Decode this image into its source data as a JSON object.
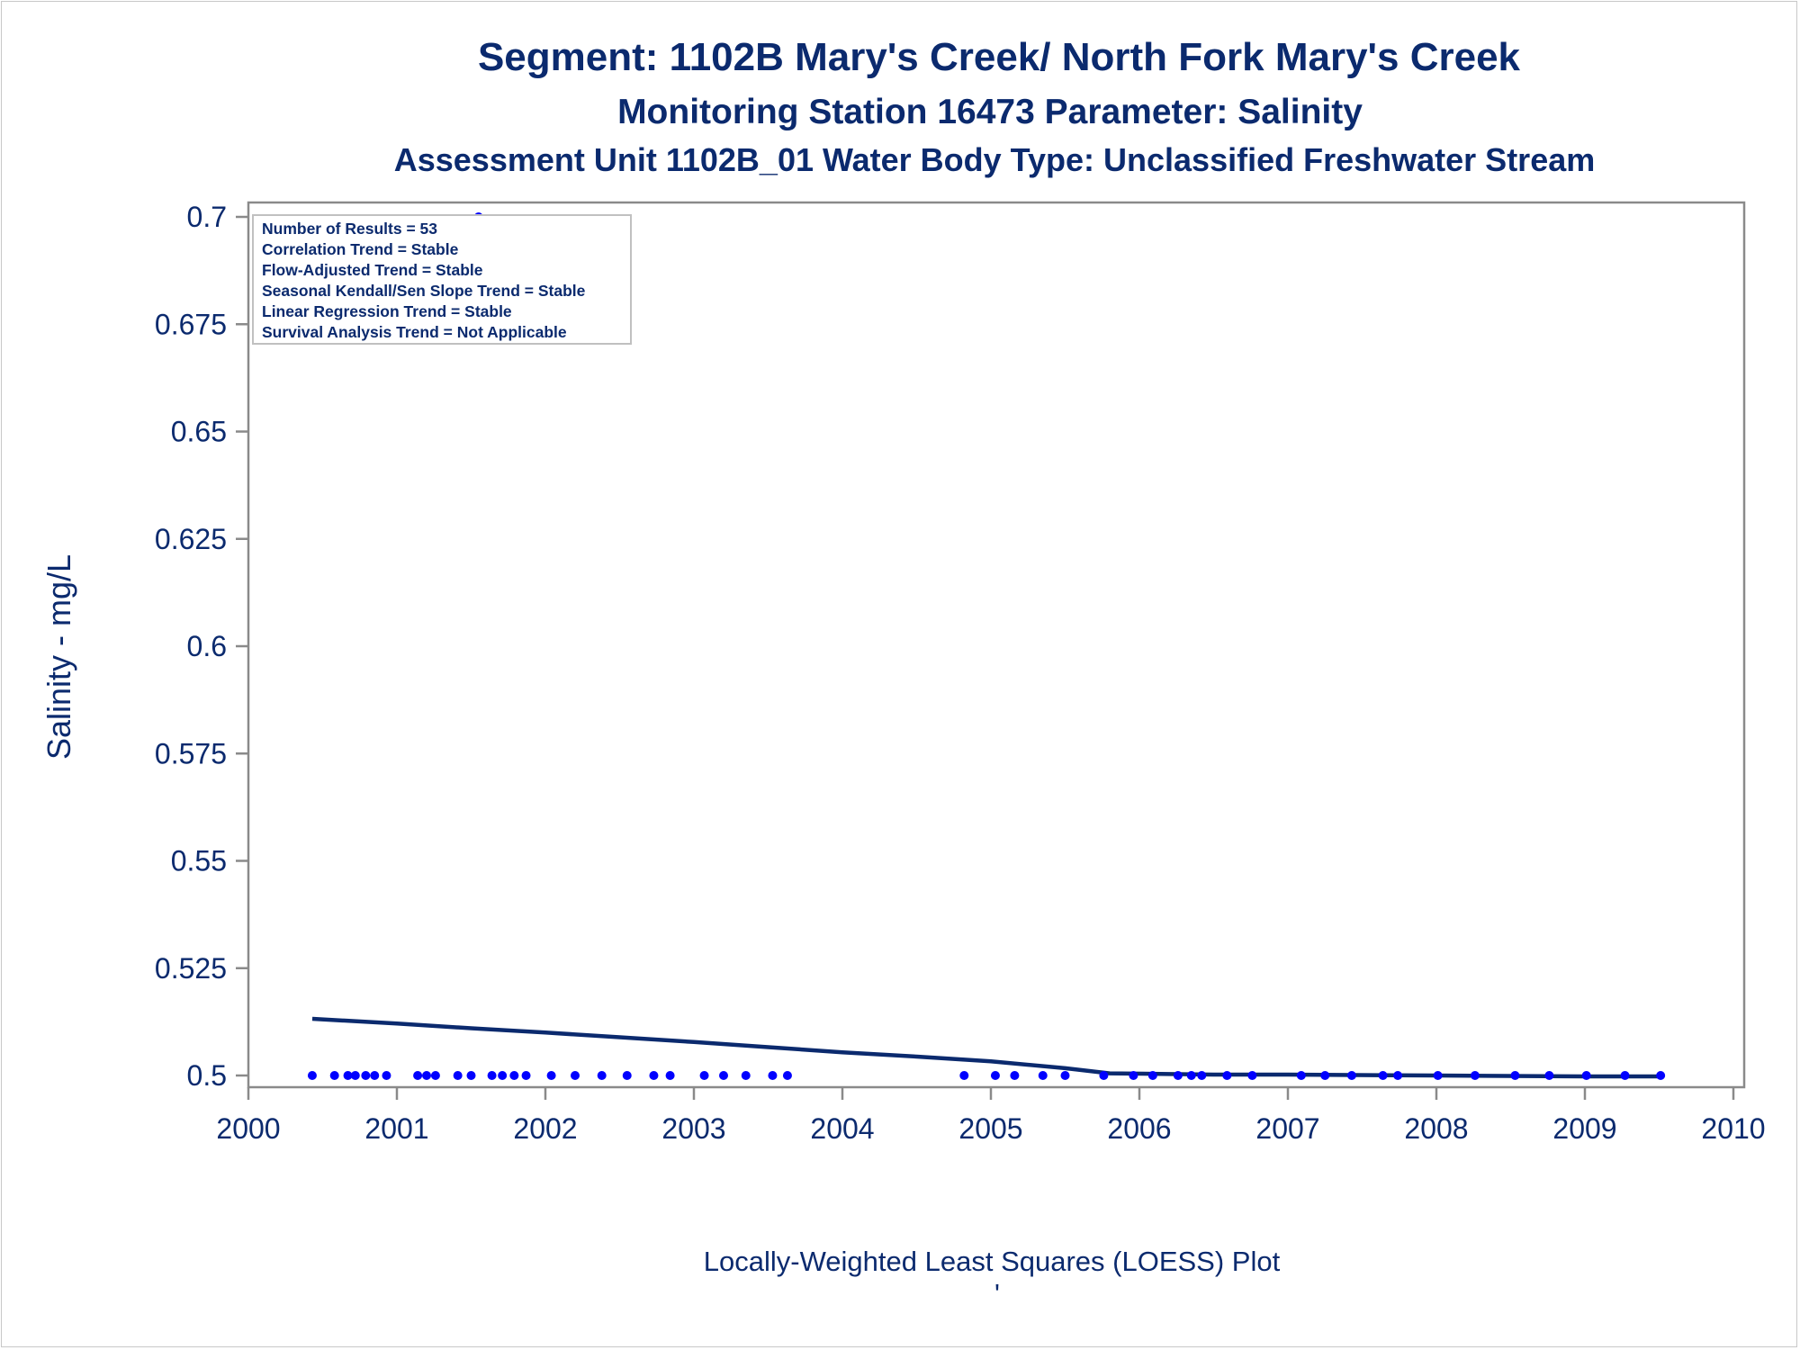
{
  "chart_data": {
    "type": "scatter",
    "title": "Segment: 1102B  Mary's Creek/ North Fork Mary's Creek",
    "subtitle": "Monitoring Station 16473 Parameter: Salinity",
    "subtitle2": "Assessment Unit 1102B_01   Water Body Type: Unclassified Freshwater Stream",
    "xlabel": "",
    "ylabel": "Salinity - mg/L",
    "footnote": "Locally-Weighted Least Squares (LOESS) Plot",
    "footnote_mark": "'",
    "xlim": [
      2000,
      2010
    ],
    "ylim": [
      0.5,
      0.7
    ],
    "x_ticks": [
      2000,
      2001,
      2002,
      2003,
      2004,
      2005,
      2006,
      2007,
      2008,
      2009,
      2010
    ],
    "x_tick_labels": [
      "2000",
      "2001",
      "2002",
      "2003",
      "2004",
      "2005",
      "2006",
      "2007",
      "2008",
      "2009",
      "2010"
    ],
    "y_ticks": [
      0.5,
      0.525,
      0.55,
      0.575,
      0.6,
      0.625,
      0.65,
      0.675,
      0.7
    ],
    "y_tick_labels": [
      "0.5",
      "0.525",
      "0.55",
      "0.575",
      "0.6",
      "0.625",
      "0.65",
      "0.675",
      "0.7"
    ],
    "points_color": "#0000ff",
    "loess_color": "#0b2a6e",
    "points": [
      {
        "x": 2000.43,
        "y": 0.5
      },
      {
        "x": 2000.58,
        "y": 0.5
      },
      {
        "x": 2000.67,
        "y": 0.5
      },
      {
        "x": 2000.72,
        "y": 0.5
      },
      {
        "x": 2000.79,
        "y": 0.5
      },
      {
        "x": 2000.85,
        "y": 0.5
      },
      {
        "x": 2000.93,
        "y": 0.5
      },
      {
        "x": 2001.14,
        "y": 0.5
      },
      {
        "x": 2001.2,
        "y": 0.5
      },
      {
        "x": 2001.26,
        "y": 0.5
      },
      {
        "x": 2001.41,
        "y": 0.5
      },
      {
        "x": 2001.5,
        "y": 0.5
      },
      {
        "x": 2001.55,
        "y": 0.7
      },
      {
        "x": 2001.64,
        "y": 0.5
      },
      {
        "x": 2001.71,
        "y": 0.5
      },
      {
        "x": 2001.79,
        "y": 0.5
      },
      {
        "x": 2001.87,
        "y": 0.5
      },
      {
        "x": 2002.04,
        "y": 0.5
      },
      {
        "x": 2002.2,
        "y": 0.5
      },
      {
        "x": 2002.38,
        "y": 0.5
      },
      {
        "x": 2002.55,
        "y": 0.5
      },
      {
        "x": 2002.73,
        "y": 0.5
      },
      {
        "x": 2002.84,
        "y": 0.5
      },
      {
        "x": 2003.07,
        "y": 0.5
      },
      {
        "x": 2003.2,
        "y": 0.5
      },
      {
        "x": 2003.35,
        "y": 0.5
      },
      {
        "x": 2003.53,
        "y": 0.5
      },
      {
        "x": 2003.63,
        "y": 0.5
      },
      {
        "x": 2004.82,
        "y": 0.5
      },
      {
        "x": 2005.03,
        "y": 0.5
      },
      {
        "x": 2005.16,
        "y": 0.5
      },
      {
        "x": 2005.35,
        "y": 0.5
      },
      {
        "x": 2005.5,
        "y": 0.5
      },
      {
        "x": 2005.76,
        "y": 0.5
      },
      {
        "x": 2005.96,
        "y": 0.5
      },
      {
        "x": 2006.09,
        "y": 0.5
      },
      {
        "x": 2006.26,
        "y": 0.5
      },
      {
        "x": 2006.35,
        "y": 0.5
      },
      {
        "x": 2006.42,
        "y": 0.5
      },
      {
        "x": 2006.59,
        "y": 0.5
      },
      {
        "x": 2006.76,
        "y": 0.5
      },
      {
        "x": 2007.09,
        "y": 0.5
      },
      {
        "x": 2007.25,
        "y": 0.5
      },
      {
        "x": 2007.43,
        "y": 0.5
      },
      {
        "x": 2007.64,
        "y": 0.5
      },
      {
        "x": 2007.74,
        "y": 0.5
      },
      {
        "x": 2008.01,
        "y": 0.5
      },
      {
        "x": 2008.26,
        "y": 0.5
      },
      {
        "x": 2008.53,
        "y": 0.5
      },
      {
        "x": 2008.76,
        "y": 0.5
      },
      {
        "x": 2009.01,
        "y": 0.5
      },
      {
        "x": 2009.27,
        "y": 0.5
      },
      {
        "x": 2009.51,
        "y": 0.5
      }
    ],
    "loess": [
      {
        "x": 2000.43,
        "y": 0.5132
      },
      {
        "x": 2001.0,
        "y": 0.5121
      },
      {
        "x": 2001.5,
        "y": 0.511
      },
      {
        "x": 2002.0,
        "y": 0.51
      },
      {
        "x": 2002.5,
        "y": 0.5089
      },
      {
        "x": 2003.0,
        "y": 0.5078
      },
      {
        "x": 2003.5,
        "y": 0.5066
      },
      {
        "x": 2004.0,
        "y": 0.5054
      },
      {
        "x": 2004.5,
        "y": 0.5044
      },
      {
        "x": 2005.0,
        "y": 0.5033
      },
      {
        "x": 2005.5,
        "y": 0.5017
      },
      {
        "x": 2005.8,
        "y": 0.5005
      },
      {
        "x": 2006.5,
        "y": 0.5002
      },
      {
        "x": 2007.0,
        "y": 0.5002
      },
      {
        "x": 2008.0,
        "y": 0.5
      },
      {
        "x": 2009.0,
        "y": 0.4998
      },
      {
        "x": 2009.51,
        "y": 0.4998
      }
    ]
  },
  "stats_box": {
    "lines": [
      "Number of Results = 53",
      "Correlation Trend = Stable",
      "Flow-Adjusted Trend = Stable",
      "Seasonal Kendall/Sen Slope Trend = Stable",
      "Linear Regression Trend = Stable",
      "Survival Analysis Trend = Not Applicable"
    ]
  }
}
